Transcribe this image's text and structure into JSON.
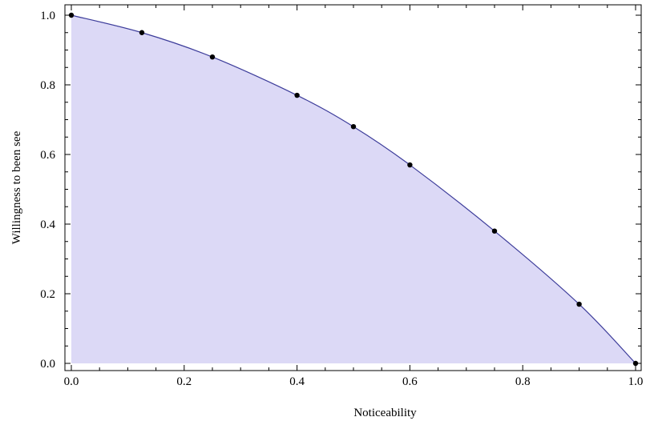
{
  "chart_data": {
    "type": "area",
    "xlabel": "Noticeability",
    "ylabel": "Willingness to been see",
    "xlim": [
      0,
      1
    ],
    "ylim": [
      0,
      1
    ],
    "x_ticks": [
      0.0,
      0.2,
      0.4,
      0.6,
      0.8,
      1.0
    ],
    "y_ticks": [
      0.0,
      0.2,
      0.4,
      0.6,
      0.8,
      1.0
    ],
    "x_tick_labels": [
      "0.0",
      "0.2",
      "0.4",
      "0.6",
      "0.8",
      "1.0"
    ],
    "y_tick_labels": [
      "0.0",
      "0.2",
      "0.4",
      "0.6",
      "0.8",
      "1.0"
    ],
    "grid": false,
    "fill_color": "#dcd9f6",
    "line_color": "#3c3c9a",
    "point_color": "#000000",
    "series": [
      {
        "points": [
          {
            "x": 0.0,
            "y": 1.0
          },
          {
            "x": 0.125,
            "y": 0.95
          },
          {
            "x": 0.25,
            "y": 0.88
          },
          {
            "x": 0.4,
            "y": 0.77
          },
          {
            "x": 0.5,
            "y": 0.68
          },
          {
            "x": 0.6,
            "y": 0.57
          },
          {
            "x": 0.75,
            "y": 0.38
          },
          {
            "x": 0.9,
            "y": 0.17
          },
          {
            "x": 1.0,
            "y": 0.0
          }
        ]
      }
    ]
  }
}
